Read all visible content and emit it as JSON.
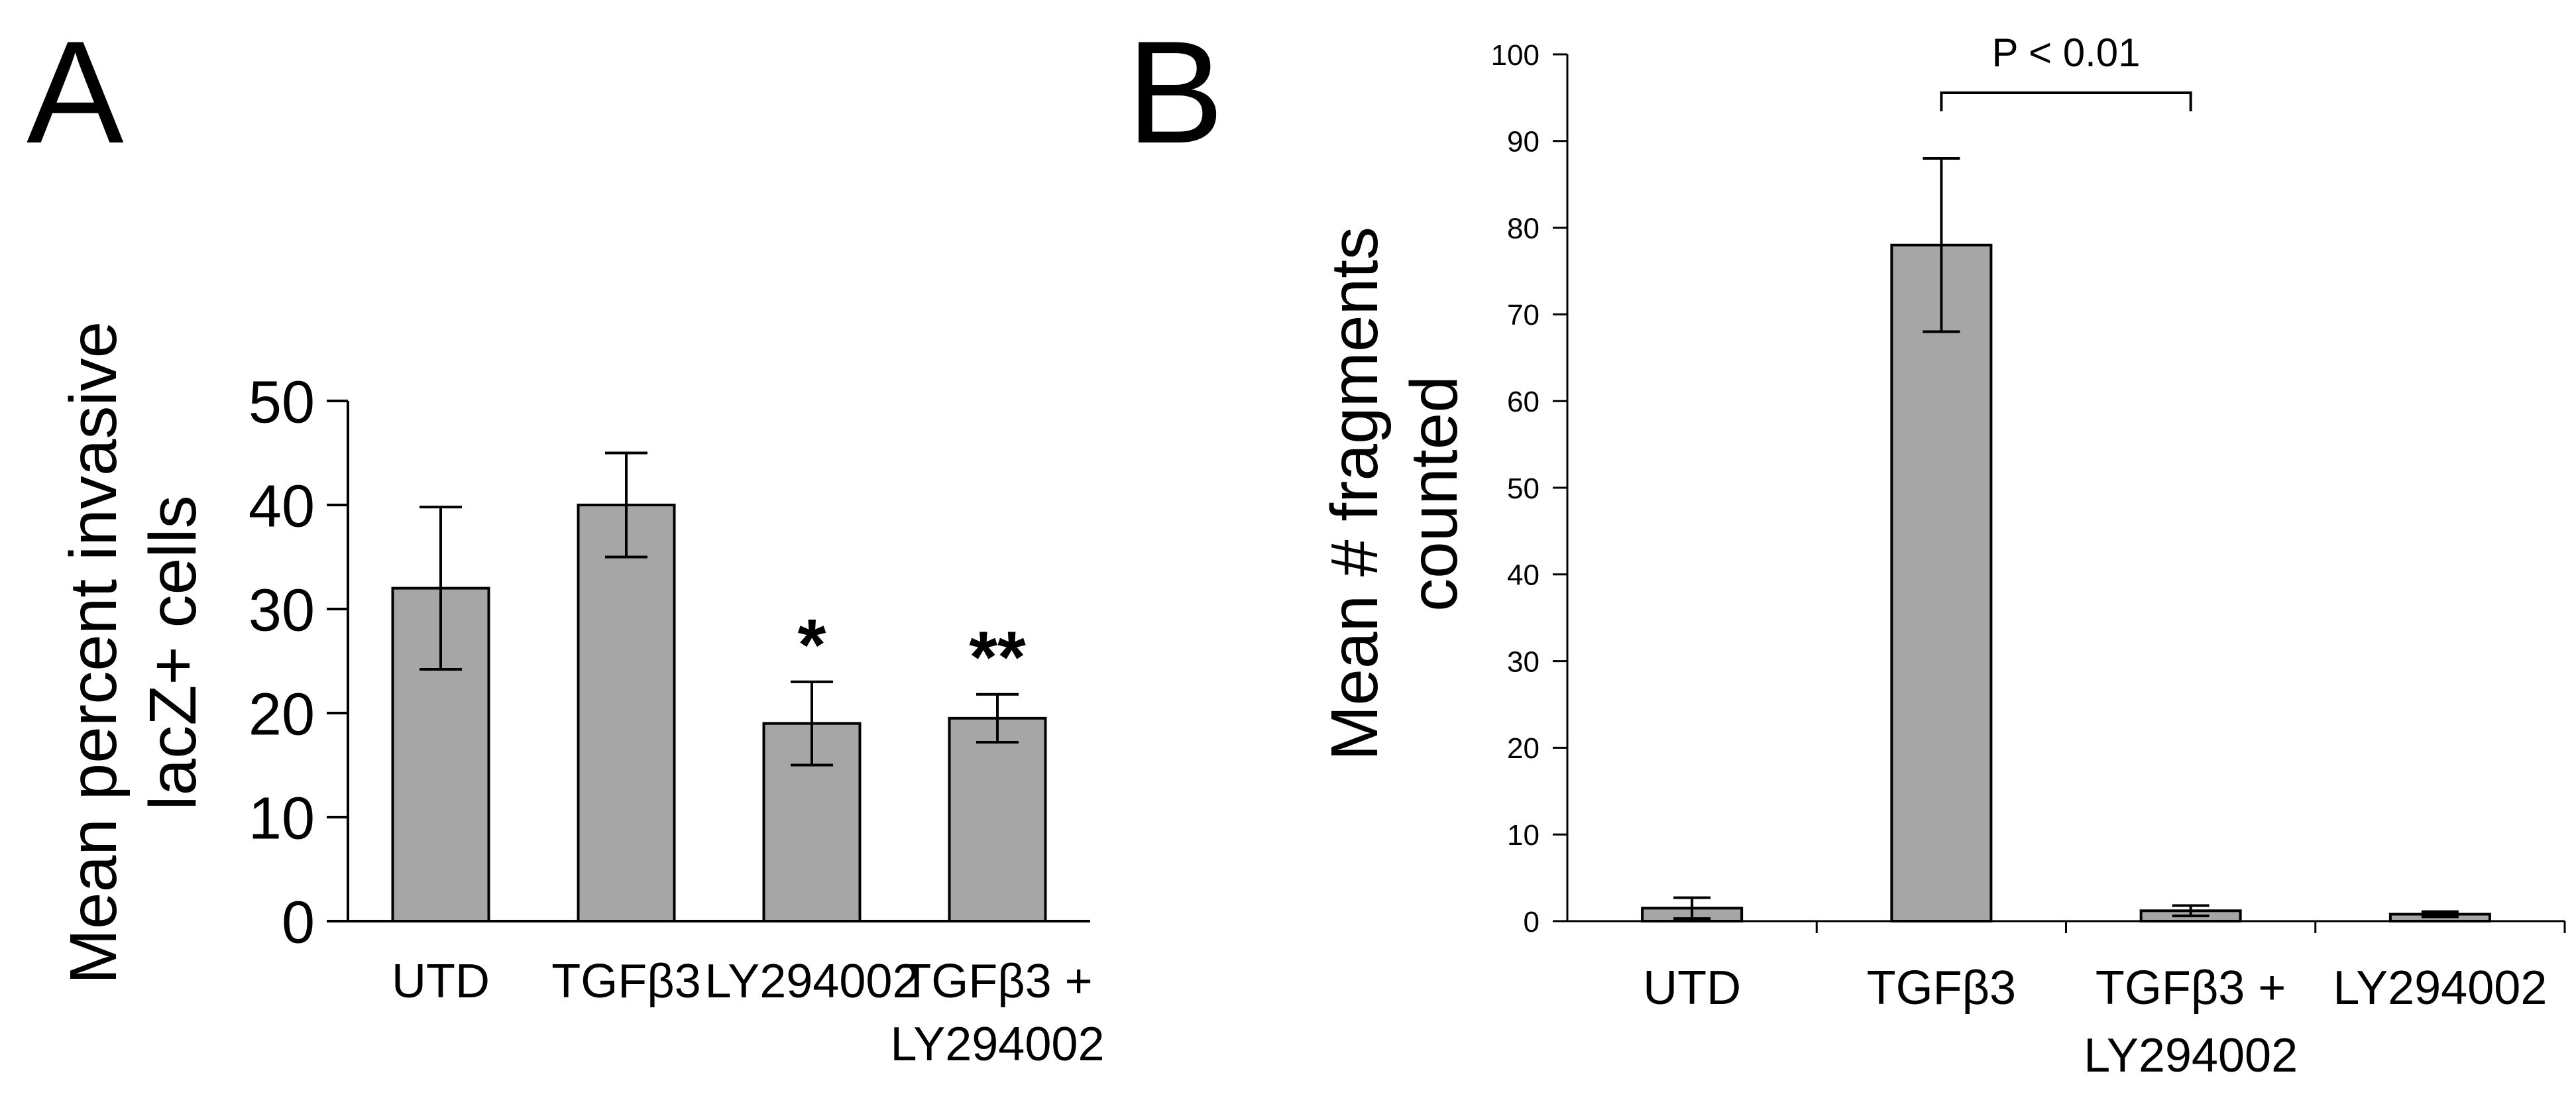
{
  "panels": [
    {
      "label": "A",
      "chart_data": {
        "type": "bar",
        "title": "",
        "xlabel": "",
        "ylabel_lines": [
          "Mean percent invasive",
          "lacZ+ cells"
        ],
        "ylim": [
          0,
          50
        ],
        "yticks": [
          0,
          10,
          20,
          30,
          40,
          50
        ],
        "grid": false,
        "categories": [
          [
            "UTD"
          ],
          [
            "TGFβ3"
          ],
          [
            "LY294002"
          ],
          [
            "TGFβ3 +",
            "LY294002"
          ]
        ],
        "values": [
          32,
          40,
          19,
          19.5
        ],
        "errors": [
          7.8,
          5,
          4,
          2.3
        ],
        "annotations": [
          "",
          "",
          "*",
          "**"
        ],
        "bar_color": "#a6a6a6"
      }
    },
    {
      "label": "B",
      "chart_data": {
        "type": "bar",
        "title": "",
        "xlabel": "",
        "ylabel_lines": [
          "Mean # fragments",
          "counted"
        ],
        "ylim": [
          0,
          100
        ],
        "yticks": [
          0,
          10,
          20,
          30,
          40,
          50,
          60,
          70,
          80,
          90,
          100
        ],
        "grid": false,
        "categories": [
          [
            "UTD"
          ],
          [
            "TGFβ3"
          ],
          [
            "TGFβ3 +",
            "LY294002"
          ],
          [
            "LY294002"
          ]
        ],
        "values": [
          1.5,
          78,
          1.2,
          0.8
        ],
        "errors": [
          1.2,
          10,
          0.6,
          0.3
        ],
        "significance": {
          "from": 1,
          "to": 2,
          "label": "P < 0.01"
        },
        "bar_color": "#a6a6a6"
      }
    }
  ]
}
